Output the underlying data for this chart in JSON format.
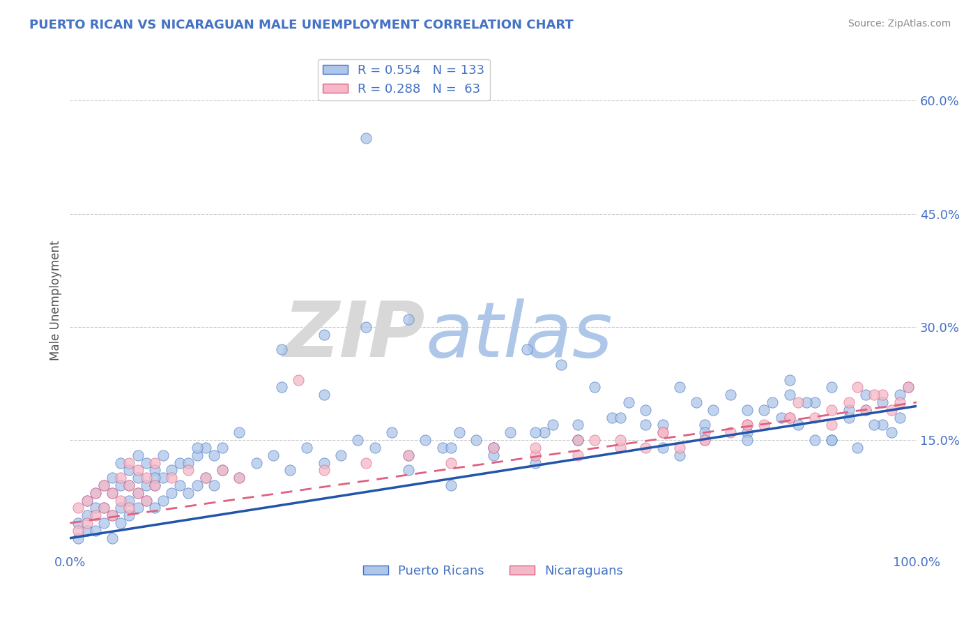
{
  "title": "PUERTO RICAN VS NICARAGUAN MALE UNEMPLOYMENT CORRELATION CHART",
  "source_text": "Source: ZipAtlas.com",
  "ylabel": "Male Unemployment",
  "xlim": [
    0.0,
    1.0
  ],
  "ylim": [
    0.0,
    0.67
  ],
  "yticks": [
    0.15,
    0.3,
    0.45,
    0.6
  ],
  "ytick_labels": [
    "15.0%",
    "30.0%",
    "45.0%",
    "60.0%"
  ],
  "title_color": "#4472C4",
  "axis_color": "#4472C4",
  "grid_color": "#cccccc",
  "watermark_zip_color": "#d8d8d8",
  "watermark_atlas_color": "#aec6e8",
  "blue_scatter_color": "#aec6e8",
  "blue_edge_color": "#4472C4",
  "pink_scatter_color": "#f4b8c8",
  "pink_edge_color": "#e06080",
  "blue_line_color": "#2255aa",
  "pink_line_color": "#e06080",
  "legend_R1": "0.554",
  "legend_N1": "133",
  "legend_R2": "0.288",
  "legend_N2": "63",
  "legend_label1": "Puerto Ricans",
  "legend_label2": "Nicaraguans",
  "blue_trend_x0": 0.0,
  "blue_trend_y0": 0.02,
  "blue_trend_x1": 1.0,
  "blue_trend_y1": 0.195,
  "pink_trend_x0": 0.0,
  "pink_trend_y0": 0.04,
  "pink_trend_x1": 1.0,
  "pink_trend_y1": 0.2,
  "blue_x": [
    0.01,
    0.01,
    0.02,
    0.02,
    0.02,
    0.03,
    0.03,
    0.03,
    0.04,
    0.04,
    0.04,
    0.05,
    0.05,
    0.05,
    0.05,
    0.06,
    0.06,
    0.06,
    0.06,
    0.07,
    0.07,
    0.07,
    0.07,
    0.08,
    0.08,
    0.08,
    0.08,
    0.09,
    0.09,
    0.09,
    0.1,
    0.1,
    0.1,
    0.11,
    0.11,
    0.11,
    0.12,
    0.12,
    0.13,
    0.13,
    0.14,
    0.14,
    0.15,
    0.15,
    0.16,
    0.16,
    0.17,
    0.17,
    0.18,
    0.18,
    0.2,
    0.22,
    0.24,
    0.26,
    0.28,
    0.3,
    0.32,
    0.34,
    0.36,
    0.38,
    0.4,
    0.42,
    0.44,
    0.46,
    0.48,
    0.5,
    0.52,
    0.54,
    0.56,
    0.58,
    0.6,
    0.62,
    0.64,
    0.66,
    0.68,
    0.7,
    0.72,
    0.74,
    0.76,
    0.78,
    0.8,
    0.82,
    0.84,
    0.86,
    0.88,
    0.9,
    0.92,
    0.94,
    0.96,
    0.98,
    0.85,
    0.87,
    0.9,
    0.92,
    0.94,
    0.96,
    0.98,
    0.99,
    0.75,
    0.8,
    0.85,
    0.9,
    0.95,
    0.65,
    0.7,
    0.75,
    0.8,
    0.5,
    0.55,
    0.6,
    0.45,
    0.5,
    0.55,
    0.4,
    0.45,
    0.35,
    0.4,
    0.3,
    0.35,
    0.25,
    0.3,
    0.25,
    0.2,
    0.15,
    0.1,
    0.57,
    0.83,
    0.6,
    0.72,
    0.68,
    0.88,
    0.93,
    0.97
  ],
  "blue_y": [
    0.02,
    0.04,
    0.03,
    0.05,
    0.07,
    0.03,
    0.06,
    0.08,
    0.04,
    0.06,
    0.09,
    0.02,
    0.05,
    0.08,
    0.1,
    0.04,
    0.06,
    0.09,
    0.12,
    0.05,
    0.07,
    0.09,
    0.11,
    0.06,
    0.08,
    0.1,
    0.13,
    0.07,
    0.09,
    0.12,
    0.06,
    0.09,
    0.11,
    0.07,
    0.1,
    0.13,
    0.08,
    0.11,
    0.09,
    0.12,
    0.08,
    0.12,
    0.09,
    0.13,
    0.1,
    0.14,
    0.09,
    0.13,
    0.11,
    0.14,
    0.1,
    0.12,
    0.13,
    0.11,
    0.14,
    0.12,
    0.13,
    0.15,
    0.14,
    0.16,
    0.13,
    0.15,
    0.14,
    0.16,
    0.15,
    0.14,
    0.16,
    0.27,
    0.16,
    0.25,
    0.17,
    0.22,
    0.18,
    0.2,
    0.19,
    0.17,
    0.22,
    0.2,
    0.19,
    0.21,
    0.16,
    0.19,
    0.18,
    0.17,
    0.2,
    0.15,
    0.18,
    0.19,
    0.17,
    0.21,
    0.21,
    0.2,
    0.22,
    0.19,
    0.21,
    0.2,
    0.18,
    0.22,
    0.17,
    0.19,
    0.23,
    0.15,
    0.17,
    0.18,
    0.14,
    0.16,
    0.15,
    0.14,
    0.16,
    0.15,
    0.14,
    0.13,
    0.12,
    0.11,
    0.09,
    0.55,
    0.31,
    0.29,
    0.3,
    0.27,
    0.21,
    0.22,
    0.16,
    0.14,
    0.1,
    0.17,
    0.2,
    0.15,
    0.13,
    0.17,
    0.15,
    0.14,
    0.16
  ],
  "pink_x": [
    0.01,
    0.01,
    0.02,
    0.02,
    0.03,
    0.03,
    0.04,
    0.04,
    0.05,
    0.05,
    0.06,
    0.06,
    0.07,
    0.07,
    0.07,
    0.08,
    0.08,
    0.09,
    0.09,
    0.1,
    0.1,
    0.12,
    0.14,
    0.16,
    0.18,
    0.2,
    0.27,
    0.3,
    0.35,
    0.4,
    0.45,
    0.5,
    0.55,
    0.6,
    0.65,
    0.7,
    0.75,
    0.8,
    0.85,
    0.9,
    0.92,
    0.94,
    0.96,
    0.98,
    0.99,
    0.93,
    0.95,
    0.97,
    0.88,
    0.86,
    0.9,
    0.82,
    0.85,
    0.78,
    0.75,
    0.8,
    0.7,
    0.72,
    0.65,
    0.68,
    0.6,
    0.62,
    0.55
  ],
  "pink_y": [
    0.03,
    0.06,
    0.04,
    0.07,
    0.05,
    0.08,
    0.06,
    0.09,
    0.05,
    0.08,
    0.07,
    0.1,
    0.06,
    0.09,
    0.12,
    0.08,
    0.11,
    0.07,
    0.1,
    0.09,
    0.12,
    0.1,
    0.11,
    0.1,
    0.11,
    0.1,
    0.23,
    0.11,
    0.12,
    0.13,
    0.12,
    0.14,
    0.13,
    0.15,
    0.14,
    0.16,
    0.15,
    0.17,
    0.18,
    0.17,
    0.2,
    0.19,
    0.21,
    0.2,
    0.22,
    0.22,
    0.21,
    0.19,
    0.18,
    0.2,
    0.19,
    0.17,
    0.18,
    0.16,
    0.15,
    0.17,
    0.16,
    0.14,
    0.15,
    0.14,
    0.13,
    0.15,
    0.14
  ]
}
